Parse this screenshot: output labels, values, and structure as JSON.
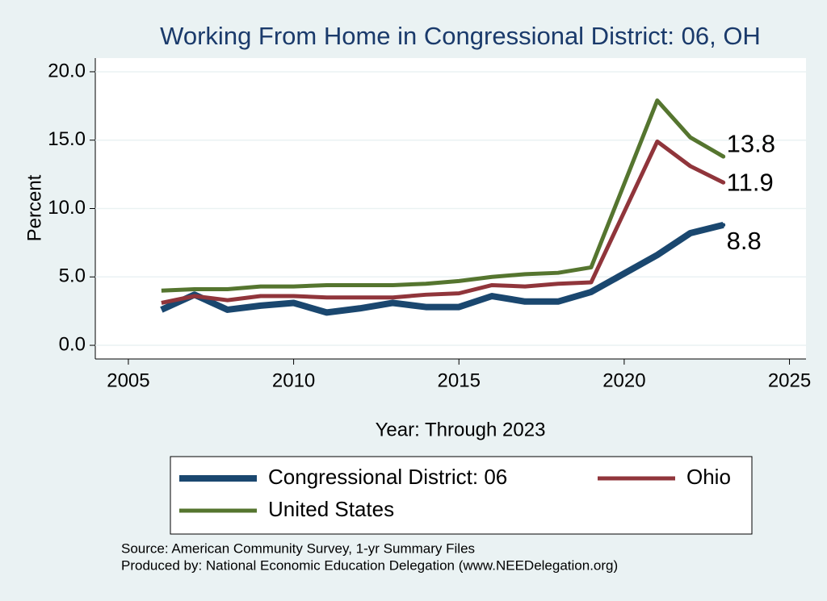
{
  "chart_data": {
    "type": "line",
    "title": "Working From Home in Congressional District: 06, OH",
    "x_label": "Year: Through 2023",
    "y_label": "Percent",
    "x": [
      2006,
      2007,
      2008,
      2009,
      2010,
      2011,
      2012,
      2013,
      2014,
      2015,
      2016,
      2017,
      2018,
      2019,
      2021,
      2022,
      2023
    ],
    "series": [
      {
        "name": "Congressional District: 06",
        "color": "#1a476f",
        "values": [
          2.6,
          3.7,
          2.6,
          2.9,
          3.1,
          2.4,
          2.7,
          3.1,
          2.8,
          2.8,
          3.6,
          3.2,
          3.2,
          3.9,
          6.6,
          8.2,
          8.8
        ]
      },
      {
        "name": "Ohio",
        "color": "#90353b",
        "values": [
          3.1,
          3.6,
          3.3,
          3.6,
          3.6,
          3.5,
          3.5,
          3.5,
          3.7,
          3.8,
          4.4,
          4.3,
          4.5,
          4.6,
          14.9,
          13.1,
          11.9
        ]
      },
      {
        "name": "United States",
        "color": "#55752f",
        "values": [
          4.0,
          4.1,
          4.1,
          4.3,
          4.3,
          4.4,
          4.4,
          4.4,
          4.5,
          4.7,
          5.0,
          5.2,
          5.3,
          5.7,
          17.9,
          15.2,
          13.8
        ]
      }
    ],
    "xlim": [
      2004,
      2025.5
    ],
    "xticks": [
      2005,
      2010,
      2015,
      2020,
      2025
    ],
    "ylim": [
      -1,
      21
    ],
    "yticks": [
      {
        "value": 0,
        "label": "0.0"
      },
      {
        "value": 5,
        "label": "5.0"
      },
      {
        "value": 10,
        "label": "10.0"
      },
      {
        "value": 15,
        "label": "15.0"
      },
      {
        "value": 20,
        "label": "20.0"
      }
    ],
    "grid": true,
    "notes": [
      "Source: American Community Survey, 1-yr Summary Files",
      "Produced by: National Economic Education Delegation (www.NEEDelegation.org)"
    ]
  }
}
